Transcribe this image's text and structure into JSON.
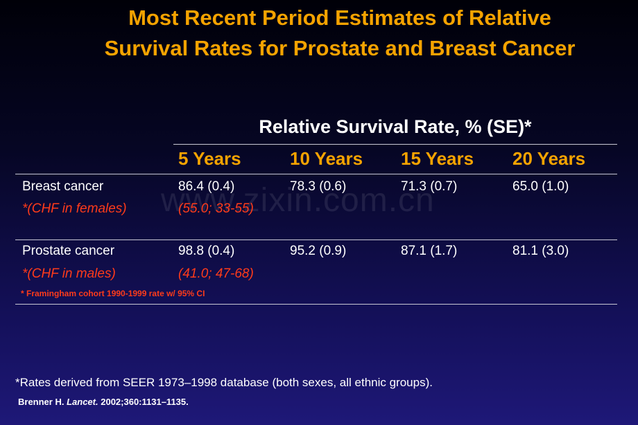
{
  "title": {
    "line1": "Most Recent Period Estimates of Relative",
    "line2": "Survival Rates for Prostate and Breast Cancer"
  },
  "watermark": "www.zixin.com.cn",
  "table": {
    "header": "Relative Survival Rate, % (SE)*",
    "years": [
      "5 Years",
      "10 Years",
      "15 Years",
      "20 Years"
    ],
    "rows": [
      {
        "label": "Breast cancer",
        "values": [
          "86.4 (0.4)",
          "78.3 (0.6)",
          "71.3 (0.7)",
          "65.0 (1.0)"
        ],
        "chf_label": "*(CHF in females)",
        "chf_value": "(55.0; 33-55)"
      },
      {
        "label": "Prostate cancer",
        "values": [
          "98.8 (0.4)",
          "95.2 (0.9)",
          "87.1 (1.7)",
          "81.1 (3.0)"
        ],
        "chf_label": "*(CHF in males)",
        "chf_value": "(41.0; 47-68)"
      }
    ],
    "chf_footnote": "* Framingham cohort 1990-1999 rate w/ 95% CI"
  },
  "footnote": "*Rates derived from SEER 1973–1998 database (both sexes, all ethnic groups).",
  "citation": {
    "author": "Brenner H.",
    "journal": "Lancet.",
    "details": "2002;360:1131–1135."
  },
  "colors": {
    "accent": "#f5a300",
    "chf": "#ff3b1a",
    "text": "#ffffff"
  }
}
